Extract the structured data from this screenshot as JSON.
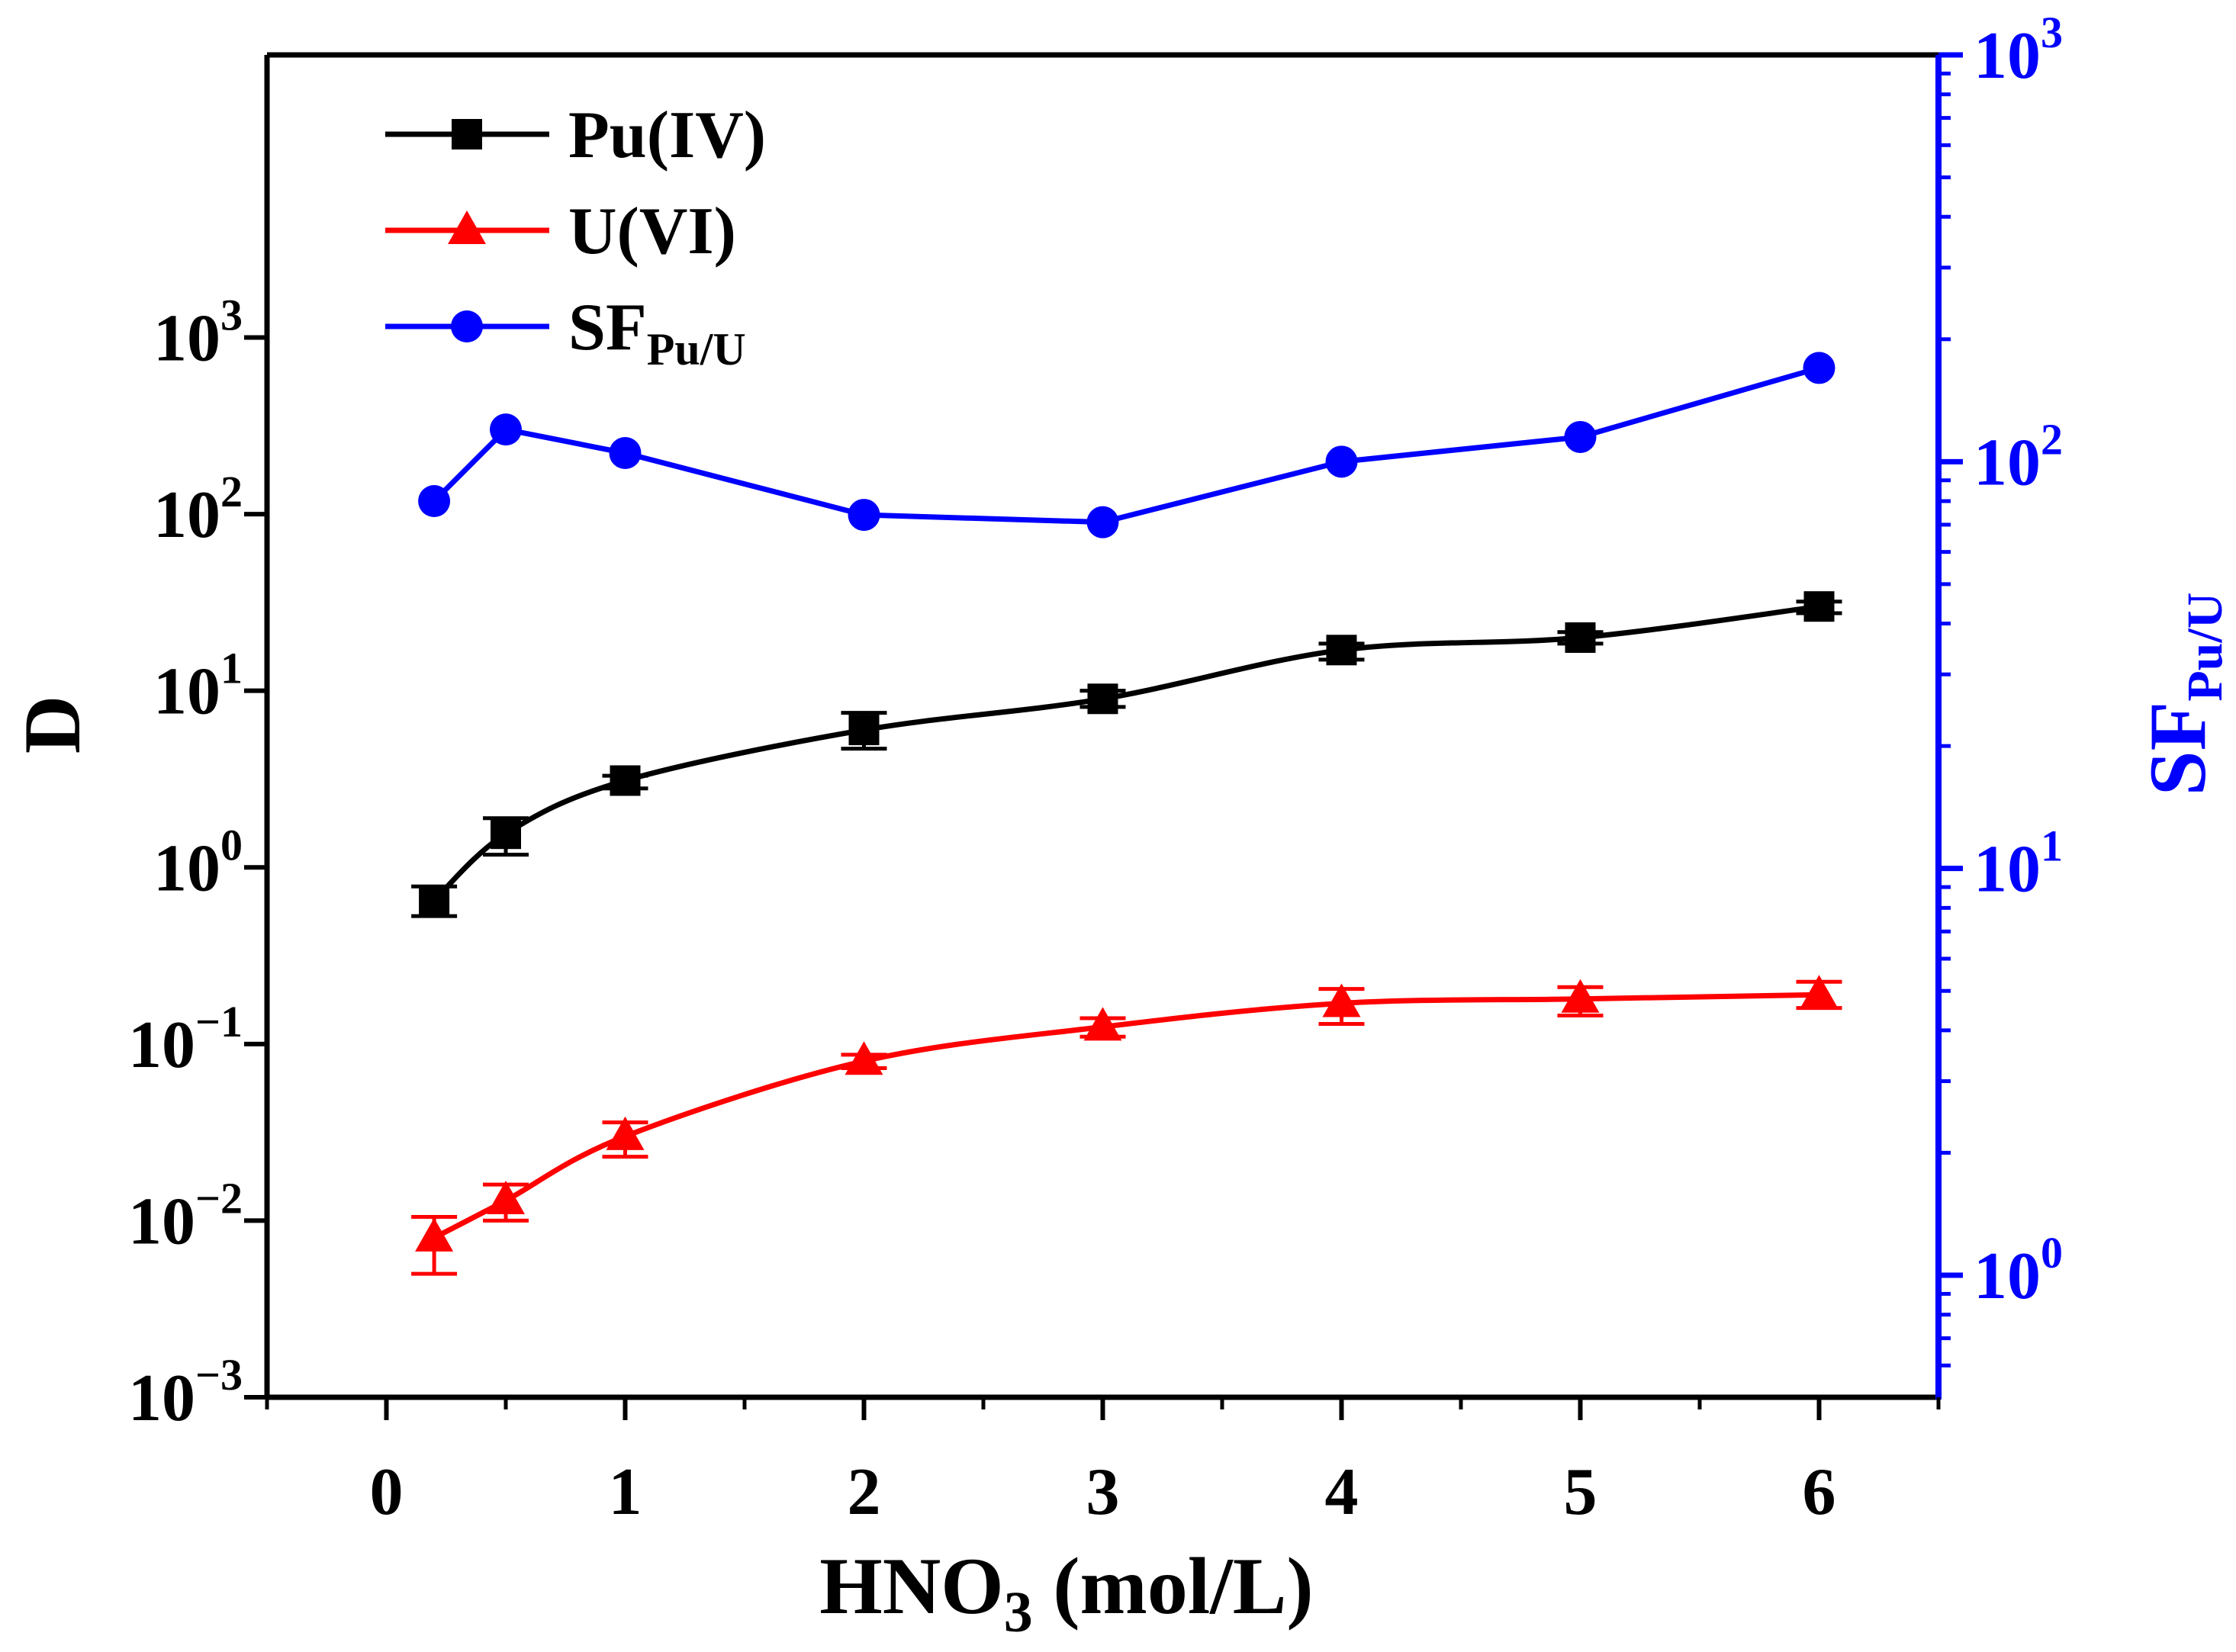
{
  "chart_data": {
    "type": "line",
    "x_label_main": "HNO",
    "x_label_sub": "3",
    "x_label_rest": " (mol/L)",
    "y_left_label": "D",
    "y_right_label_main": "SF",
    "y_right_label_sub": "Pu/U",
    "x_range": [
      -0.5,
      6.5
    ],
    "y_left_range_log10": [
      -3,
      4.6
    ],
    "y_right_range_log10": [
      -0.3,
      3
    ],
    "x_ticks": [
      {
        "value": 0,
        "label": "0"
      },
      {
        "value": 1,
        "label": "1"
      },
      {
        "value": 2,
        "label": "2"
      },
      {
        "value": 3,
        "label": "3"
      },
      {
        "value": 4,
        "label": "4"
      },
      {
        "value": 5,
        "label": "5"
      },
      {
        "value": 6,
        "label": "6"
      }
    ],
    "y_left_ticks": [
      {
        "exp": -3,
        "base": "10",
        "sup": "−3"
      },
      {
        "exp": -2,
        "base": "10",
        "sup": "−2"
      },
      {
        "exp": -1,
        "base": "10",
        "sup": "−1"
      },
      {
        "exp": 0,
        "base": "10",
        "sup": "0"
      },
      {
        "exp": 1,
        "base": "10",
        "sup": "1"
      },
      {
        "exp": 2,
        "base": "10",
        "sup": "2"
      },
      {
        "exp": 3,
        "base": "10",
        "sup": "3"
      }
    ],
    "y_right_ticks": [
      {
        "exp": 0,
        "base": "10",
        "sup": "0"
      },
      {
        "exp": 1,
        "base": "10",
        "sup": "1"
      },
      {
        "exp": 2,
        "base": "10",
        "sup": "2"
      },
      {
        "exp": 3,
        "base": "10",
        "sup": "3"
      }
    ],
    "legend_position": "top-left",
    "series": [
      {
        "name": "Pu(IV)",
        "legend_main": "Pu(IV)",
        "legend_sub": "",
        "axis": "left",
        "color": "#000000",
        "marker": "square",
        "smooth": true,
        "x": [
          0.2,
          0.5,
          1,
          2,
          3,
          4,
          5,
          6
        ],
        "y": [
          0.65,
          1.55,
          3.1,
          6.0,
          9.0,
          17.0,
          20.0,
          30.0
        ],
        "err_low": [
          0.53,
          1.18,
          2.8,
          4.7,
          8.1,
          15.0,
          18.5,
          27.5
        ],
        "err_high": [
          0.78,
          1.9,
          3.3,
          7.5,
          10.0,
          18.5,
          21.5,
          32.0
        ]
      },
      {
        "name": "U(VI)",
        "legend_main": "U(VI)",
        "legend_sub": "",
        "axis": "left",
        "color": "#ff0000",
        "marker": "triangle",
        "smooth": true,
        "x": [
          0.2,
          0.5,
          1,
          2,
          3,
          4,
          5,
          6
        ],
        "y": [
          0.008,
          0.013,
          0.03,
          0.08,
          0.125,
          0.17,
          0.18,
          0.19
        ],
        "err_low": [
          0.005,
          0.01,
          0.023,
          0.073,
          0.11,
          0.13,
          0.145,
          0.16
        ],
        "err_high": [
          0.0105,
          0.016,
          0.036,
          0.087,
          0.14,
          0.205,
          0.21,
          0.225
        ]
      },
      {
        "name": "SF Pu/U",
        "legend_main": "SF",
        "legend_sub": "Pu/U",
        "axis": "right",
        "color": "#0000ff",
        "marker": "circle",
        "smooth": false,
        "x": [
          0.2,
          0.5,
          1,
          2,
          3,
          4,
          5,
          6
        ],
        "y": [
          80,
          120,
          105,
          74,
          71,
          100,
          115,
          170
        ]
      }
    ]
  }
}
